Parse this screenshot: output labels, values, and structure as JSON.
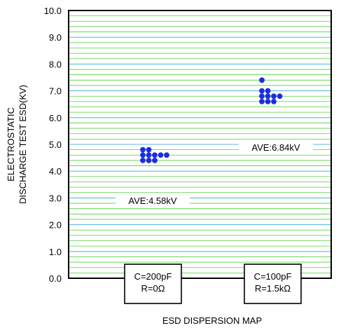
{
  "chart_data": {
    "type": "scatter",
    "title": "",
    "xlabel": "ESD DISPERSION MAP",
    "ylabel_lines": [
      "ELECTROSTATIC",
      "DISCHARGE TEST ESD(KV)"
    ],
    "ylim": [
      0,
      10
    ],
    "y_ticks": [
      "0.0",
      "1.0",
      "2.0",
      "3.0",
      "4.0",
      "5.0",
      "6.0",
      "7.0",
      "8.0",
      "9.0",
      "10.0"
    ],
    "grid": true,
    "series": [
      {
        "condition_lines": [
          "C=200pF",
          "R=0Ω"
        ],
        "average_label": "AVE:4.58kV",
        "color": "#1a2ee0",
        "points": [
          {
            "col": 0,
            "y": 4.8
          },
          {
            "col": 1,
            "y": 4.8
          },
          {
            "col": 0,
            "y": 4.6
          },
          {
            "col": 1,
            "y": 4.6
          },
          {
            "col": 2,
            "y": 4.6
          },
          {
            "col": 3,
            "y": 4.6
          },
          {
            "col": 4,
            "y": 4.6
          },
          {
            "col": 0,
            "y": 4.4
          },
          {
            "col": 1,
            "y": 4.4
          },
          {
            "col": 2,
            "y": 4.4
          }
        ]
      },
      {
        "condition_lines": [
          "C=100pF",
          "R=1.5kΩ"
        ],
        "average_label": "AVE:6.84kV",
        "color": "#1a2ee0",
        "points": [
          {
            "col": 0,
            "y": 7.4
          },
          {
            "col": 0,
            "y": 7.0
          },
          {
            "col": 1,
            "y": 7.0
          },
          {
            "col": 0,
            "y": 6.8
          },
          {
            "col": 1,
            "y": 6.8
          },
          {
            "col": 2,
            "y": 6.8
          },
          {
            "col": 3,
            "y": 6.8
          },
          {
            "col": 0,
            "y": 6.6
          },
          {
            "col": 1,
            "y": 6.6
          },
          {
            "col": 2,
            "y": 6.6
          }
        ]
      }
    ]
  }
}
